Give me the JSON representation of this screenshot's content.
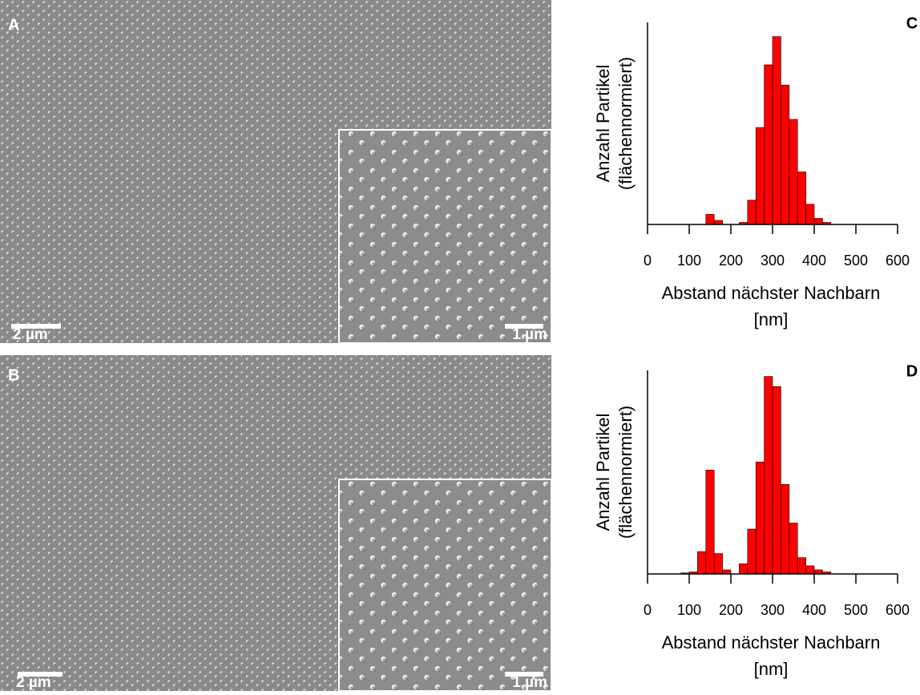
{
  "images": [
    {
      "label": "A",
      "scale_main": "2 µm",
      "scale_inset": "1 µm"
    },
    {
      "label": "B",
      "scale_main": "2 µm",
      "scale_inset": "1 µm"
    }
  ],
  "chart_data": [
    {
      "type": "histogram",
      "panel_label": "C",
      "ylabel": [
        "Anzahl Partikel",
        "(flächennormiert)"
      ],
      "xlabel": [
        "Abstand nächster Nachbarn",
        "[nm]"
      ],
      "color": "#ff0000",
      "bins": [
        0,
        20,
        40,
        60,
        80,
        100,
        120,
        140,
        160,
        180,
        200,
        220,
        240,
        260,
        280,
        300,
        320,
        340,
        360,
        380,
        400,
        420,
        440,
        460,
        480,
        500,
        520,
        540,
        560,
        580,
        600
      ],
      "counts": [
        0,
        0,
        0,
        0,
        0,
        0,
        0,
        5,
        2,
        0,
        0,
        1,
        12,
        48,
        79,
        93,
        69,
        52,
        26,
        10,
        3,
        1,
        0,
        0,
        0,
        0,
        0,
        0,
        0,
        0
      ],
      "xlim": [
        0,
        600
      ],
      "ylim": [
        0,
        100
      ],
      "xticks": [
        0,
        100,
        200,
        300,
        400,
        500,
        600
      ]
    },
    {
      "type": "histogram",
      "panel_label": "D",
      "ylabel": [
        "Anzahl Partikel",
        "(flächennormiert)"
      ],
      "xlabel": [
        "Abstand nächster Nachbarn",
        "[nm]"
      ],
      "color": "#ff0000",
      "bins": [
        0,
        20,
        40,
        60,
        80,
        100,
        120,
        140,
        160,
        180,
        200,
        220,
        240,
        260,
        280,
        300,
        320,
        340,
        360,
        380,
        400,
        420,
        440,
        460,
        480,
        500,
        520,
        540,
        560,
        580,
        600
      ],
      "counts": [
        0,
        0,
        0,
        0,
        0.5,
        1,
        11,
        51,
        10,
        2,
        0,
        5,
        22,
        55,
        97,
        92,
        44,
        25,
        8,
        4,
        2,
        1,
        0,
        0,
        0,
        0,
        0,
        0,
        0,
        0
      ],
      "xlim": [
        0,
        600
      ],
      "ylim": [
        0,
        100
      ],
      "xticks": [
        0,
        100,
        200,
        300,
        400,
        500,
        600
      ]
    }
  ]
}
